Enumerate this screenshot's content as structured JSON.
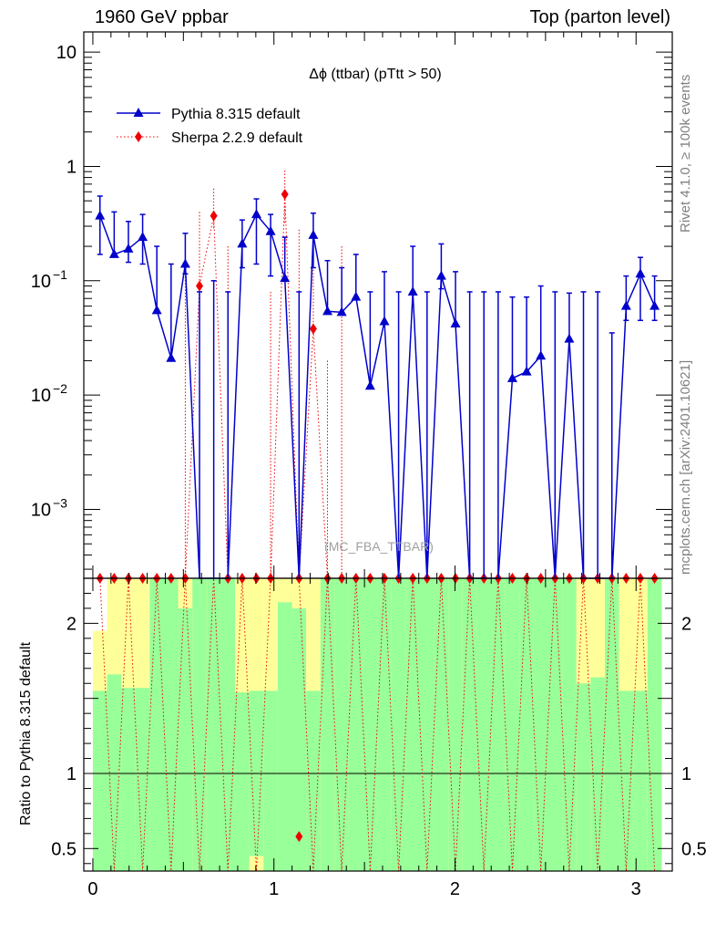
{
  "header": {
    "left": "1960 GeV ppbar",
    "right": "Top (parton level)"
  },
  "side_labels": {
    "rivet": "Rivet 4.1.0, ≥ 100k events",
    "mcplots": "mcplots.cern.ch [arXiv:2401.10621]"
  },
  "colors": {
    "pythia": "#0000cc",
    "sherpa": "#ee0000",
    "band_inner": "#99ff99",
    "band_outer": "#ffff99"
  },
  "chart_data": [
    {
      "type": "line",
      "title": "Δϕ (ttbar) (pTtt > 50)",
      "watermark": "(MC_FBA_TTBAR)",
      "xlabel": "",
      "ylabel": "",
      "yscale": "log",
      "xlim": [
        -0.05,
        3.2
      ],
      "ylim": [
        0.00025,
        15
      ],
      "x_ticks": [
        "0",
        "1",
        "2",
        "3"
      ],
      "y_ticks": [
        {
          "value": 0.001,
          "base": "10",
          "exp": "−3"
        },
        {
          "value": 0.01,
          "base": "10",
          "exp": "−2"
        },
        {
          "value": 0.1,
          "base": "10",
          "exp": "−1"
        },
        {
          "value": 1,
          "base": "1",
          "exp": ""
        },
        {
          "value": 10,
          "base": "10",
          "exp": ""
        }
      ],
      "legend_position": "top-left",
      "series": [
        {
          "name": "Pythia 8.315 default",
          "marker": "triangle",
          "style": "solid",
          "x": [
            0.0393,
            0.1178,
            0.1963,
            0.2749,
            0.3534,
            0.432,
            0.5105,
            0.589,
            0.6676,
            0.7461,
            0.8247,
            0.9032,
            0.9817,
            1.0603,
            1.1388,
            1.2174,
            1.2959,
            1.3744,
            1.453,
            1.5315,
            1.6101,
            1.6886,
            1.7671,
            1.8457,
            1.9242,
            2.0028,
            2.0813,
            2.1598,
            2.2384,
            2.3169,
            2.3955,
            2.474,
            2.5525,
            2.6311,
            2.7096,
            2.7882,
            2.8667,
            2.9452,
            3.0238,
            3.1023
          ],
          "values": [
            0.37,
            0.17,
            0.19,
            0.24,
            0.055,
            0.021,
            0.14,
            0,
            0,
            0,
            0.21,
            0.38,
            0.27,
            0.105,
            0,
            0.25,
            0.054,
            0.053,
            0.072,
            0.012,
            0.044,
            0,
            0.08,
            0,
            0.11,
            0.042,
            0,
            0,
            0,
            0.014,
            0.016,
            0.022,
            0,
            0.031,
            0,
            0,
            0,
            0.06,
            0.115,
            0.06
          ],
          "err_up": [
            0.55,
            0.4,
            0.33,
            0.38,
            0.2,
            0.14,
            0.26,
            0.08,
            0.1,
            0.08,
            0.34,
            0.52,
            0.38,
            0.24,
            0.08,
            0.39,
            0.15,
            0.13,
            0.17,
            0.08,
            0.12,
            0.08,
            0.2,
            0.08,
            0.21,
            0.12,
            0.08,
            0.08,
            0.08,
            0.072,
            0.072,
            0.09,
            0.08,
            0.078,
            0.08,
            0.08,
            0.035,
            0.11,
            0.16,
            0.11
          ],
          "err_down": [
            0.2,
            0,
            0.045,
            0.1,
            0,
            0,
            0.025,
            0,
            0,
            0,
            0.08,
            0.24,
            0.16,
            0,
            0,
            0.12,
            0,
            0,
            0,
            0,
            0,
            0,
            0,
            0,
            0.025,
            0,
            0,
            0,
            0,
            0,
            0,
            0,
            0,
            0,
            0,
            0,
            0,
            0.015,
            0.07,
            0.015
          ]
        },
        {
          "name": "Sherpa 2.2.9 default",
          "marker": "diamond",
          "style": "dotted",
          "x": [
            0.0393,
            0.1178,
            0.1963,
            0.2749,
            0.3534,
            0.432,
            0.5105,
            0.589,
            0.6676,
            0.7461,
            0.8247,
            0.9032,
            0.9817,
            1.0603,
            1.1388,
            1.2174,
            1.2959,
            1.3744,
            1.453,
            1.5315,
            1.6101,
            1.6886,
            1.7671,
            1.8457,
            1.9242,
            2.0028,
            2.0813,
            2.1598,
            2.2384,
            2.3169,
            2.3955,
            2.474,
            2.5525,
            2.6311,
            2.7096,
            2.7882,
            2.8667,
            2.9452,
            3.0238,
            3.1023
          ],
          "values": [
            0,
            0,
            0,
            0,
            0,
            0,
            0,
            0.09,
            0.37,
            0,
            0,
            0,
            0,
            0.57,
            0,
            0.038,
            0,
            0,
            0,
            0,
            0,
            0,
            0,
            0,
            0,
            0,
            0,
            0,
            0,
            0,
            0,
            0,
            0,
            0,
            0,
            0,
            0,
            0,
            0,
            0
          ],
          "err_up": [
            0,
            0,
            0,
            0,
            0,
            0,
            0.25,
            0.4,
            0.64,
            0.2,
            0,
            0,
            0.08,
            0.92,
            0.28,
            0.27,
            0.02,
            0.2,
            0,
            0,
            0,
            0,
            0,
            0,
            0,
            0,
            0,
            0,
            0,
            0,
            0,
            0,
            0,
            0,
            0,
            0,
            0,
            0,
            0,
            0
          ],
          "err_down": [
            0,
            0,
            0,
            0,
            0,
            0,
            0,
            0,
            0.09,
            0,
            0,
            0,
            0,
            0.25,
            0,
            0,
            0,
            0,
            0,
            0,
            0,
            0,
            0,
            0,
            0,
            0,
            0,
            0,
            0,
            0,
            0,
            0,
            0,
            0,
            0,
            0,
            0,
            0,
            0,
            0
          ]
        }
      ]
    },
    {
      "type": "bar",
      "title": "",
      "xlabel": "",
      "ylabel": "Ratio to Pythia 8.315 default",
      "ylim": [
        0.35,
        2.3
      ],
      "x_ticks": [
        "0",
        "1",
        "2",
        "3"
      ],
      "y_ticks": [
        "0.5",
        "1",
        "2"
      ],
      "reference_line": 1,
      "bin_edges": [
        0,
        0.0785,
        0.1571,
        0.2356,
        0.3142,
        0.3927,
        0.4712,
        0.5498,
        0.6283,
        0.7069,
        0.7854,
        0.8639,
        0.9425,
        1.021,
        1.0996,
        1.1781,
        1.2566,
        1.3352,
        1.4137,
        1.4923,
        1.5708,
        1.6493,
        1.7279,
        1.8064,
        1.885,
        1.9635,
        2.042,
        2.1206,
        2.1991,
        2.2777,
        2.3562,
        2.4347,
        2.5133,
        2.5918,
        2.6704,
        2.7489,
        2.8274,
        2.906,
        2.9845,
        3.0631,
        3.1416
      ],
      "band_inner_low": [
        0.35,
        0.35,
        0.35,
        0.35,
        0.35,
        0.35,
        0.35,
        0.35,
        0.35,
        0.35,
        0.35,
        0.45,
        0.35,
        0.35,
        0.35,
        0.35,
        0.35,
        0.35,
        0.35,
        0.35,
        0.35,
        0.35,
        0.35,
        0.35,
        0.35,
        0.35,
        0.35,
        0.35,
        0.35,
        0.35,
        0.35,
        0.35,
        0.35,
        0.35,
        0.35,
        0.35,
        0.35,
        0.35,
        0.35,
        0.35
      ],
      "band_inner_high": [
        1.55,
        1.66,
        1.57,
        1.57,
        2.3,
        2.3,
        2.1,
        2.3,
        2.3,
        2.3,
        1.54,
        1.55,
        1.55,
        2.14,
        2.1,
        1.55,
        2.3,
        2.3,
        2.3,
        2.3,
        2.3,
        2.3,
        2.3,
        2.3,
        2.3,
        2.3,
        2.3,
        2.3,
        2.3,
        2.3,
        2.3,
        2.3,
        2.3,
        2.3,
        1.6,
        1.64,
        2.3,
        1.55,
        1.55,
        2.3
      ],
      "band_outer_low": [
        0.35,
        0.35,
        0.35,
        0.35,
        0.35,
        0.35,
        0.35,
        0.35,
        0.35,
        0.35,
        0.35,
        0.35,
        0.35,
        0.35,
        0.35,
        0.35,
        0.35,
        0.35,
        0.35,
        0.35,
        0.35,
        0.35,
        0.35,
        0.35,
        0.35,
        0.35,
        0.35,
        0.35,
        0.35,
        0.35,
        0.35,
        0.35,
        0.35,
        0.35,
        0.35,
        0.35,
        0.35,
        0.35,
        0.35,
        0.35
      ],
      "band_outer_high": [
        1.95,
        2.3,
        2.3,
        2.3,
        2.3,
        2.3,
        2.3,
        2.3,
        2.3,
        2.3,
        2.3,
        2.3,
        2.3,
        2.3,
        2.3,
        2.3,
        2.3,
        2.3,
        2.3,
        2.3,
        2.3,
        2.3,
        2.3,
        2.3,
        2.3,
        2.3,
        2.3,
        2.3,
        2.3,
        2.3,
        2.3,
        2.3,
        2.3,
        2.3,
        2.3,
        2.3,
        2.3,
        2.3,
        2.3,
        2.3
      ],
      "sherpa_ratio_points": [
        {
          "x": 1.1388,
          "value": 0.58
        }
      ]
    }
  ]
}
